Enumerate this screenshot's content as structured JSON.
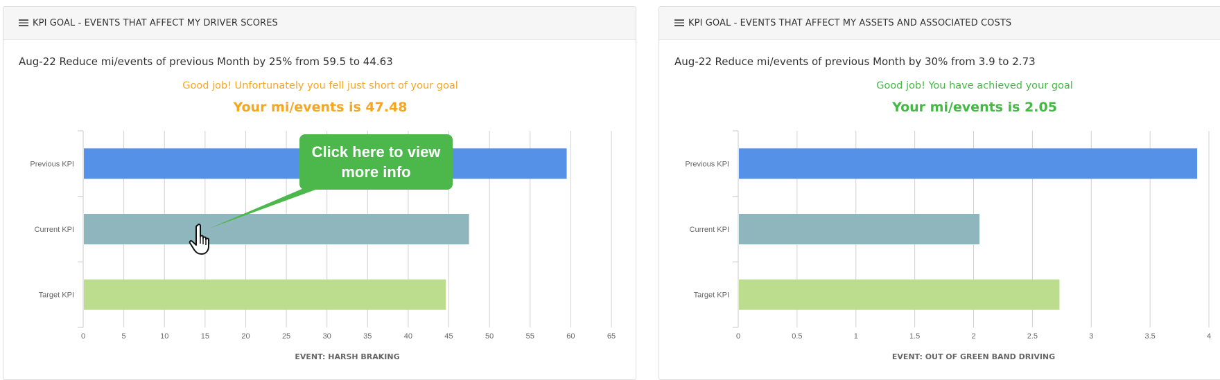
{
  "panels": [
    {
      "title": "KPI GOAL - EVENTS THAT AFFECT MY DRIVER SCORES",
      "icon": "table-icon",
      "goal": "Aug-22 Reduce mi/events of previous Month by 25% from 59.5 to 44.63",
      "status": "Good job! Unfortunately you fell just short of your goal",
      "result": "Your mi/events is 47.48",
      "status_color": "#f5a623"
    },
    {
      "title": "KPI GOAL - EVENTS THAT AFFECT MY ASSETS AND ASSOCIATED COSTS",
      "icon": "table-icon",
      "goal": "Aug-22 Reduce mi/events of previous Month by 30% from 3.9 to 2.73",
      "status": "Good job! You have achieved your goal",
      "result": "Your mi/events is 2.05",
      "status_color": "#44b944"
    }
  ],
  "callout": {
    "text": "Click here to view more info",
    "icon": "pointing-hand-icon"
  },
  "chart_data": [
    {
      "type": "bar",
      "orientation": "horizontal",
      "categories": [
        "Previous KPI",
        "Current KPI",
        "Target KPI"
      ],
      "values": [
        59.5,
        47.48,
        44.63
      ],
      "colors": [
        "#5591e6",
        "#8fb5bd",
        "#bcdc8e"
      ],
      "xlabel": "EVENT: HARSH BRAKING",
      "xlim": [
        0,
        65
      ],
      "ticks": [
        0,
        5,
        10,
        15,
        20,
        25,
        30,
        35,
        40,
        45,
        50,
        55,
        60,
        65
      ],
      "grid": true
    },
    {
      "type": "bar",
      "orientation": "horizontal",
      "categories": [
        "Previous KPI",
        "Current KPI",
        "Target KPI"
      ],
      "values": [
        3.9,
        2.05,
        2.73
      ],
      "colors": [
        "#5591e6",
        "#8fb5bd",
        "#bcdc8e"
      ],
      "xlabel": "EVENT: OUT OF GREEN BAND DRIVING",
      "xlim": [
        0,
        4
      ],
      "ticks": [
        0,
        0.5,
        1,
        1.5,
        2,
        2.5,
        3,
        3.5,
        4
      ],
      "grid": true
    }
  ]
}
